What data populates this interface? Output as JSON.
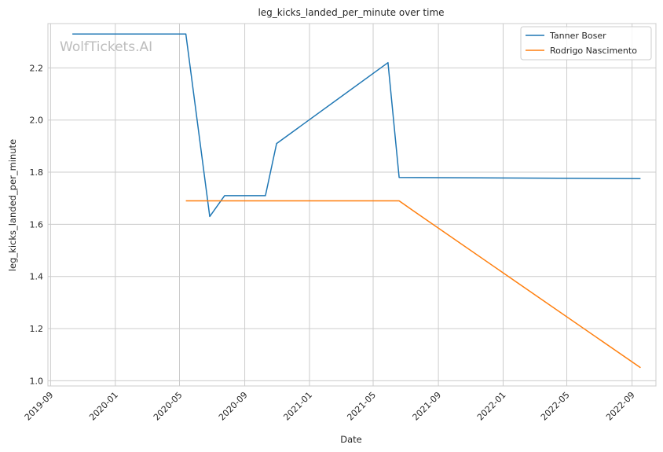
{
  "chart_data": {
    "type": "line",
    "title": "leg_kicks_landed_per_minute over time",
    "xlabel": "Date",
    "ylabel": "leg_kicks_landed_per_minute",
    "watermark": "WolfTickets.AI",
    "x_ticks": [
      "2019-09",
      "2020-01",
      "2020-05",
      "2020-09",
      "2021-01",
      "2021-05",
      "2021-09",
      "2022-01",
      "2022-05",
      "2022-09"
    ],
    "y_ticks": [
      "1.0",
      "1.2",
      "1.4",
      "1.6",
      "1.8",
      "2.0",
      "2.2"
    ],
    "xlim": [
      "2019-08-27",
      "2022-10-16"
    ],
    "ylim": [
      0.98,
      2.37
    ],
    "grid": true,
    "legend_position": "top-right",
    "series": [
      {
        "name": "Tanner Boser",
        "color": "#1f77b4",
        "x": [
          "2019-10-12",
          "2020-05-13",
          "2020-06-27",
          "2020-07-25",
          "2020-10-10",
          "2020-10-31",
          "2021-05-29",
          "2021-06-19",
          "2022-09-17"
        ],
        "y": [
          2.33,
          2.33,
          1.63,
          1.71,
          1.71,
          1.91,
          2.22,
          1.78,
          1.775
        ]
      },
      {
        "name": "Rodrigo Nascimento",
        "color": "#ff7f0e",
        "x": [
          "2020-05-13",
          "2021-06-19",
          "2021-07-17",
          "2022-09-17"
        ],
        "y": [
          1.69,
          1.69,
          1.65,
          1.05
        ]
      }
    ]
  }
}
